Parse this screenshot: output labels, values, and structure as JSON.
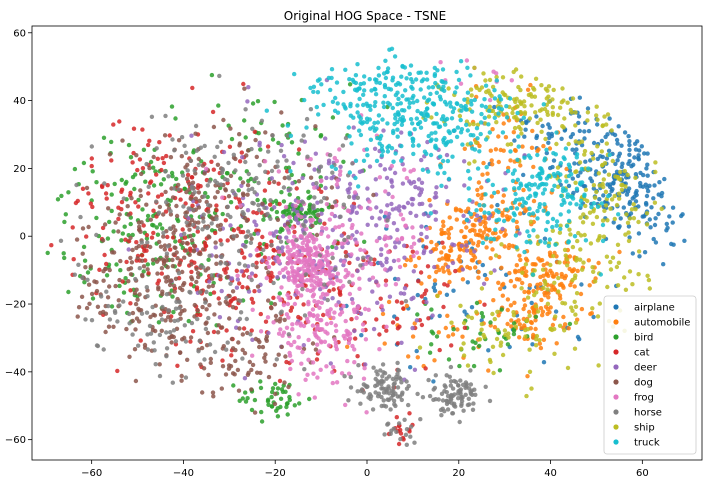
{
  "chart_data": {
    "type": "scatter",
    "title": "Original HOG Space - TSNE",
    "xlabel": "",
    "ylabel": "",
    "xlim": [
      -73,
      73
    ],
    "ylim": [
      -66,
      62
    ],
    "xticks": [
      -60,
      -40,
      -20,
      0,
      20,
      40,
      60
    ],
    "yticks": [
      -60,
      -40,
      -20,
      0,
      20,
      40,
      60
    ],
    "grid": false,
    "legend_position": "lower-right",
    "series": [
      {
        "name": "airplane",
        "color": "#1f77b4",
        "clusters": [
          {
            "cx": 55,
            "cy": 18,
            "sx": 7,
            "sy": 7,
            "n": 170
          },
          {
            "cx": 45,
            "cy": 32,
            "sx": 7,
            "sy": 6,
            "n": 70
          },
          {
            "cx": 62,
            "cy": 5,
            "sx": 4,
            "sy": 7,
            "n": 50
          },
          {
            "cx": 25,
            "cy": -15,
            "sx": 14,
            "sy": 12,
            "n": 70
          }
        ]
      },
      {
        "name": "automobile",
        "color": "#ff7f0e",
        "clusters": [
          {
            "cx": 20,
            "cy": -5,
            "sx": 5,
            "sy": 5,
            "n": 130
          },
          {
            "cx": 40,
            "cy": -10,
            "sx": 5,
            "sy": 4,
            "n": 90
          },
          {
            "cx": 37,
            "cy": -22,
            "sx": 4,
            "sy": 5,
            "n": 90
          },
          {
            "cx": 28,
            "cy": 5,
            "sx": 6,
            "sy": 5,
            "n": 70
          },
          {
            "cx": 30,
            "cy": 25,
            "sx": 6,
            "sy": 8,
            "n": 60
          },
          {
            "cx": 15,
            "cy": -30,
            "sx": 9,
            "sy": 6,
            "n": 30
          }
        ]
      },
      {
        "name": "bird",
        "color": "#2ca02c",
        "clusters": [
          {
            "cx": -15,
            "cy": 8,
            "sx": 3,
            "sy": 2,
            "n": 70
          },
          {
            "cx": -20,
            "cy": -48,
            "sx": 4,
            "sy": 3,
            "n": 45
          },
          {
            "cx": -50,
            "cy": 0,
            "sx": 12,
            "sy": 14,
            "n": 140
          },
          {
            "cx": -25,
            "cy": 15,
            "sx": 15,
            "sy": 15,
            "n": 140
          },
          {
            "cx": 25,
            "cy": -28,
            "sx": 6,
            "sy": 5,
            "n": 40
          }
        ]
      },
      {
        "name": "cat",
        "color": "#d62728",
        "clusters": [
          {
            "cx": -30,
            "cy": -8,
            "sx": 14,
            "sy": 13,
            "n": 230
          },
          {
            "cx": -45,
            "cy": 15,
            "sx": 12,
            "sy": 12,
            "n": 110
          },
          {
            "cx": 0,
            "cy": -20,
            "sx": 10,
            "sy": 10,
            "n": 90
          },
          {
            "cx": 8,
            "cy": -57,
            "sx": 2,
            "sy": 2,
            "n": 15
          }
        ]
      },
      {
        "name": "deer",
        "color": "#9467bd",
        "clusters": [
          {
            "cx": -10,
            "cy": 0,
            "sx": 14,
            "sy": 16,
            "n": 260
          },
          {
            "cx": 10,
            "cy": 10,
            "sx": 10,
            "sy": 12,
            "n": 110
          }
        ]
      },
      {
        "name": "dog",
        "color": "#8c564b",
        "clusters": [
          {
            "cx": -45,
            "cy": -15,
            "sx": 10,
            "sy": 12,
            "n": 250
          },
          {
            "cx": -35,
            "cy": 10,
            "sx": 12,
            "sy": 12,
            "n": 160
          },
          {
            "cx": -25,
            "cy": -35,
            "sx": 8,
            "sy": 7,
            "n": 70
          }
        ]
      },
      {
        "name": "frog",
        "color": "#e377c2",
        "clusters": [
          {
            "cx": -13,
            "cy": -8,
            "sx": 4,
            "sy": 5,
            "n": 200
          },
          {
            "cx": -10,
            "cy": -28,
            "sx": 6,
            "sy": 7,
            "n": 150
          },
          {
            "cx": -5,
            "cy": 0,
            "sx": 10,
            "sy": 12,
            "n": 130
          },
          {
            "cx": 25,
            "cy": 48,
            "sx": 5,
            "sy": 3,
            "n": 10
          }
        ]
      },
      {
        "name": "horse",
        "color": "#7f7f7f",
        "clusters": [
          {
            "cx": 4,
            "cy": -45,
            "sx": 3,
            "sy": 3,
            "n": 90
          },
          {
            "cx": 19,
            "cy": -47,
            "sx": 3,
            "sy": 3,
            "n": 90
          },
          {
            "cx": -28,
            "cy": 10,
            "sx": 14,
            "sy": 14,
            "n": 200
          },
          {
            "cx": -45,
            "cy": -25,
            "sx": 10,
            "sy": 10,
            "n": 80
          },
          {
            "cx": 8,
            "cy": -57,
            "sx": 2,
            "sy": 2,
            "n": 15
          }
        ]
      },
      {
        "name": "ship",
        "color": "#bcbd22",
        "clusters": [
          {
            "cx": 35,
            "cy": 38,
            "sx": 9,
            "sy": 6,
            "n": 170
          },
          {
            "cx": 52,
            "cy": 12,
            "sx": 6,
            "sy": 7,
            "n": 90
          },
          {
            "cx": 45,
            "cy": -10,
            "sx": 8,
            "sy": 10,
            "n": 110
          },
          {
            "cx": 30,
            "cy": -30,
            "sx": 8,
            "sy": 6,
            "n": 60
          }
        ]
      },
      {
        "name": "truck",
        "color": "#17becf",
        "clusters": [
          {
            "cx": 12,
            "cy": 35,
            "sx": 11,
            "sy": 8,
            "n": 320
          },
          {
            "cx": 0,
            "cy": 45,
            "sx": 7,
            "sy": 4,
            "n": 60
          },
          {
            "cx": 40,
            "cy": 15,
            "sx": 6,
            "sy": 6,
            "n": 120
          },
          {
            "cx": 35,
            "cy": 5,
            "sx": 8,
            "sy": 6,
            "n": 60
          }
        ]
      }
    ]
  }
}
